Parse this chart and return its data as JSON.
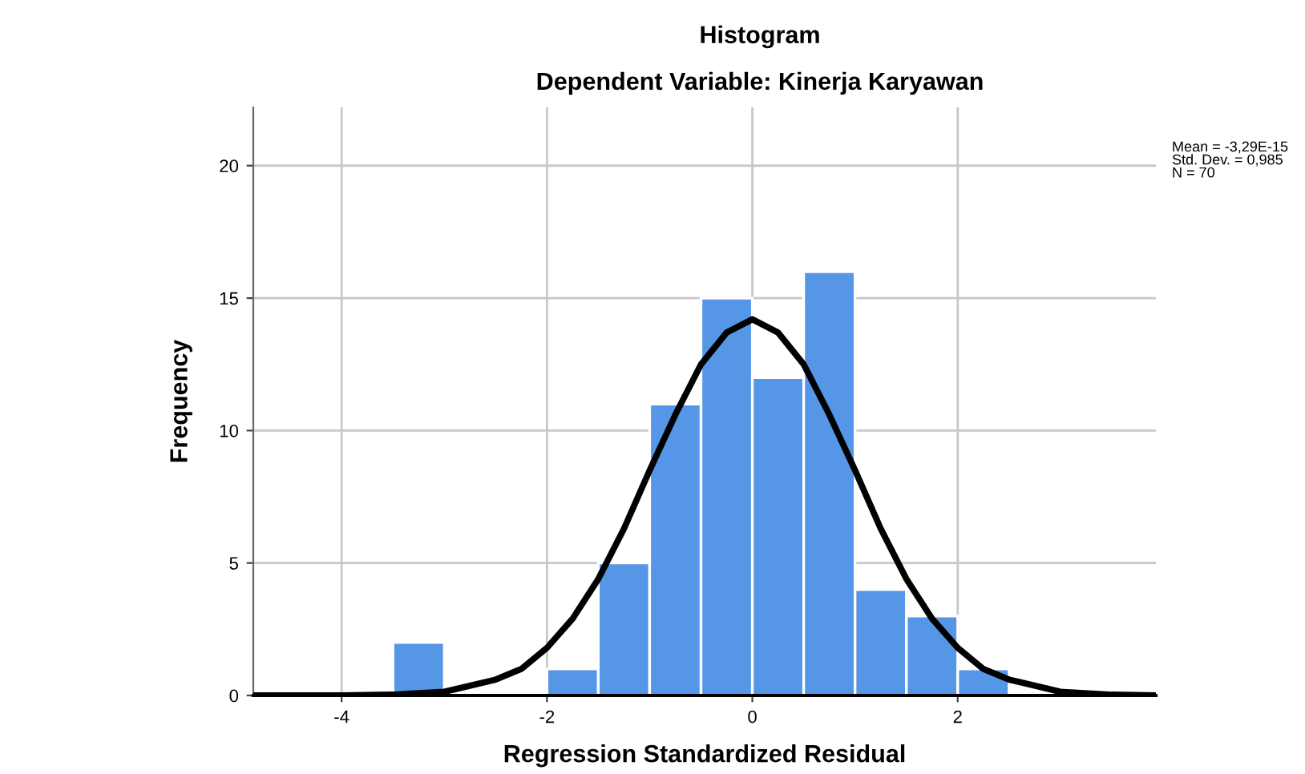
{
  "chart_data": {
    "type": "histogram",
    "title": "Histogram",
    "subtitle": "Dependent Variable: Kinerja Karyawan",
    "xlabel": "Regression Standardized Residual",
    "ylabel": "Frequency",
    "bins": [
      -3.5,
      -3.0,
      -2.5,
      -2.0,
      -1.5,
      -1.0,
      -0.5,
      0.0,
      0.5,
      1.0,
      1.5,
      2.0,
      2.5
    ],
    "values": [
      2,
      0,
      0,
      1,
      5,
      11,
      15,
      12,
      16,
      4,
      3,
      1
    ],
    "color": "#5596e6",
    "series": [
      {
        "type": "line",
        "color": "#000000",
        "x": [
          -4.86,
          -4.0,
          -3.5,
          -3.0,
          -2.5,
          -2.25,
          -2.0,
          -1.75,
          -1.5,
          -1.25,
          -1.0,
          -0.75,
          -0.5,
          -0.25,
          0.0,
          0.25,
          0.5,
          0.75,
          1.0,
          1.25,
          1.5,
          1.75,
          2.0,
          2.25,
          2.5,
          3.0,
          3.5,
          3.93
        ],
        "values": [
          0.0,
          0.0,
          0.03,
          0.14,
          0.6,
          1.0,
          1.8,
          2.9,
          4.4,
          6.3,
          8.5,
          10.6,
          12.5,
          13.7,
          14.2,
          13.7,
          12.5,
          10.6,
          8.5,
          6.3,
          4.4,
          2.9,
          1.8,
          1.0,
          0.6,
          0.14,
          0.03,
          0.0
        ]
      }
    ],
    "xlim": [
      -4.86,
      3.93
    ],
    "ylim": [
      0,
      22.2
    ],
    "xticks": [
      -4,
      -2,
      0,
      2
    ],
    "yticks": [
      0,
      5,
      10,
      15,
      20
    ],
    "grid": true,
    "annotations": [
      "Mean = -3,29E-15\nStd. Dev. = 0,985\nN = 70"
    ]
  }
}
